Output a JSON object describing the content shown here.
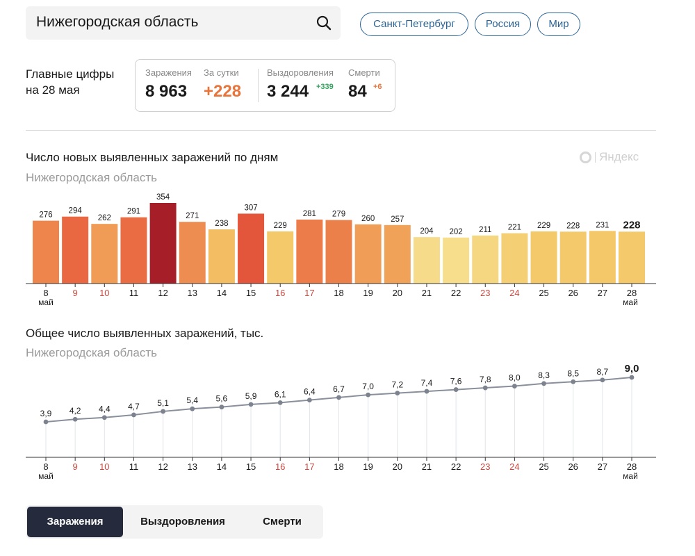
{
  "search": {
    "value": "Нижегородская область"
  },
  "region_links": [
    "Санкт-Петербург",
    "Россия",
    "Мир"
  ],
  "key_figures": {
    "title_line1": "Главные цифры",
    "title_line2": "на 28 мая",
    "infections_label": "Заражения",
    "infections_value": "8 963",
    "per_day_label": "За сутки",
    "per_day_value": "+228",
    "recovered_label": "Выздоровления",
    "recovered_value": "3 244",
    "recovered_delta": "+339",
    "deaths_label": "Смерти",
    "deaths_value": "84",
    "deaths_delta": "+6",
    "colors": {
      "increase": "#e8743b",
      "recovered": "#2fa55c"
    }
  },
  "watermark": "Яндекс",
  "days": [
    "8",
    "9",
    "10",
    "11",
    "12",
    "13",
    "14",
    "15",
    "16",
    "17",
    "18",
    "19",
    "20",
    "21",
    "22",
    "23",
    "24",
    "25",
    "26",
    "27",
    "28"
  ],
  "weekend_days": [
    "9",
    "10",
    "16",
    "17",
    "23",
    "24"
  ],
  "month_label": "май",
  "daily_chart": {
    "title": "Число новых выявленных заражений по дням",
    "subtitle": "Нижегородская область"
  },
  "total_chart": {
    "title": "Общее число выявленных заражений, тыс.",
    "subtitle": "Нижегородская область"
  },
  "tabs": [
    {
      "label": "Заражения",
      "active": true
    },
    {
      "label": "Выздоровления",
      "active": false
    },
    {
      "label": "Смерти",
      "active": false
    }
  ],
  "chart_data": [
    {
      "type": "bar",
      "title": "Число новых выявленных заражений по дням",
      "subtitle": "Нижегородская область",
      "categories": [
        "8 май",
        "9",
        "10",
        "11",
        "12",
        "13",
        "14",
        "15",
        "16",
        "17",
        "18",
        "19",
        "20",
        "21",
        "22",
        "23",
        "24",
        "25",
        "26",
        "27",
        "28 май"
      ],
      "values": [
        276,
        294,
        262,
        291,
        354,
        271,
        238,
        307,
        229,
        281,
        279,
        260,
        257,
        204,
        202,
        211,
        221,
        229,
        228,
        231,
        228
      ],
      "ylim": [
        0,
        354
      ],
      "grid": false,
      "color_scale": "higher values darker red, lower values pale yellow"
    },
    {
      "type": "line",
      "title": "Общее число выявленных заражений, тыс.",
      "subtitle": "Нижегородская область",
      "categories": [
        "8 май",
        "9",
        "10",
        "11",
        "12",
        "13",
        "14",
        "15",
        "16",
        "17",
        "18",
        "19",
        "20",
        "21",
        "22",
        "23",
        "24",
        "25",
        "26",
        "27",
        "28 май"
      ],
      "value_labels": [
        "3,9",
        "4,2",
        "4,4",
        "4,7",
        "5,1",
        "5,4",
        "5,6",
        "5,9",
        "6,1",
        "6,4",
        "6,7",
        "7,0",
        "7,2",
        "7,4",
        "7,6",
        "7,8",
        "8,0",
        "8,3",
        "8,5",
        "8,7",
        "9,0"
      ],
      "values": [
        3.9,
        4.2,
        4.4,
        4.7,
        5.1,
        5.4,
        5.6,
        5.9,
        6.1,
        6.4,
        6.7,
        7.0,
        7.2,
        7.4,
        7.6,
        7.8,
        8.0,
        8.3,
        8.5,
        8.7,
        9.0
      ],
      "grid": "vertical lines at each day",
      "line_color": "#8a909b"
    }
  ]
}
